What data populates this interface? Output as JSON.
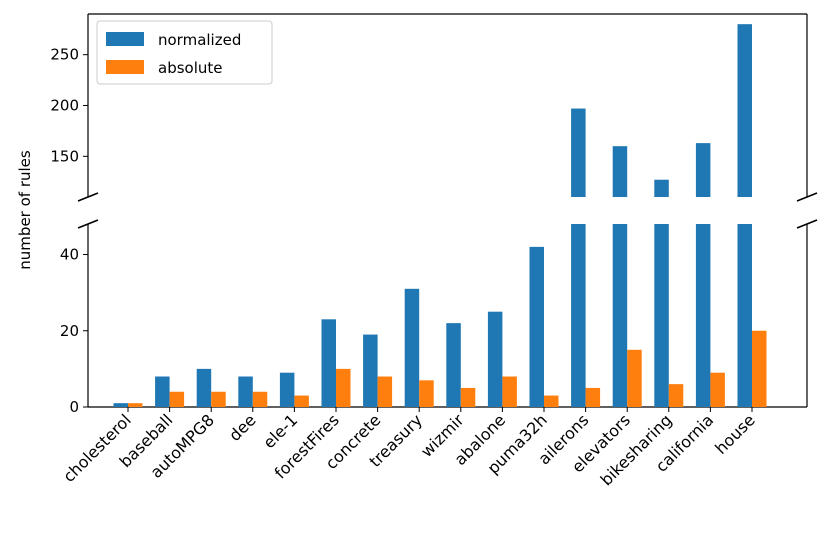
{
  "chart_data": {
    "type": "bar",
    "ylabel": "number of rules",
    "xlabel": "",
    "broken_axis": true,
    "upper_ylim": [
      110,
      290
    ],
    "lower_ylim": [
      0,
      48
    ],
    "upper_yticks": [
      150,
      200,
      250
    ],
    "lower_yticks": [
      0,
      20,
      40
    ],
    "legend_position": "top-left",
    "categories": [
      "cholesterol",
      "baseball",
      "autoMPG8",
      "dee",
      "ele-1",
      "forestFires",
      "concrete",
      "treasury",
      "wizmir",
      "abalone",
      "puma32h",
      "ailerons",
      "elevators",
      "bikesharing",
      "california",
      "house"
    ],
    "series": [
      {
        "name": "normalized",
        "color": "#1f77b4",
        "values": [
          1,
          8,
          10,
          8,
          9,
          23,
          19,
          31,
          22,
          25,
          42,
          197,
          160,
          127,
          163,
          280
        ]
      },
      {
        "name": "absolute",
        "color": "#ff7f0e",
        "values": [
          1,
          4,
          4,
          4,
          3,
          10,
          8,
          7,
          5,
          8,
          3,
          5,
          15,
          6,
          9,
          20
        ]
      }
    ]
  }
}
